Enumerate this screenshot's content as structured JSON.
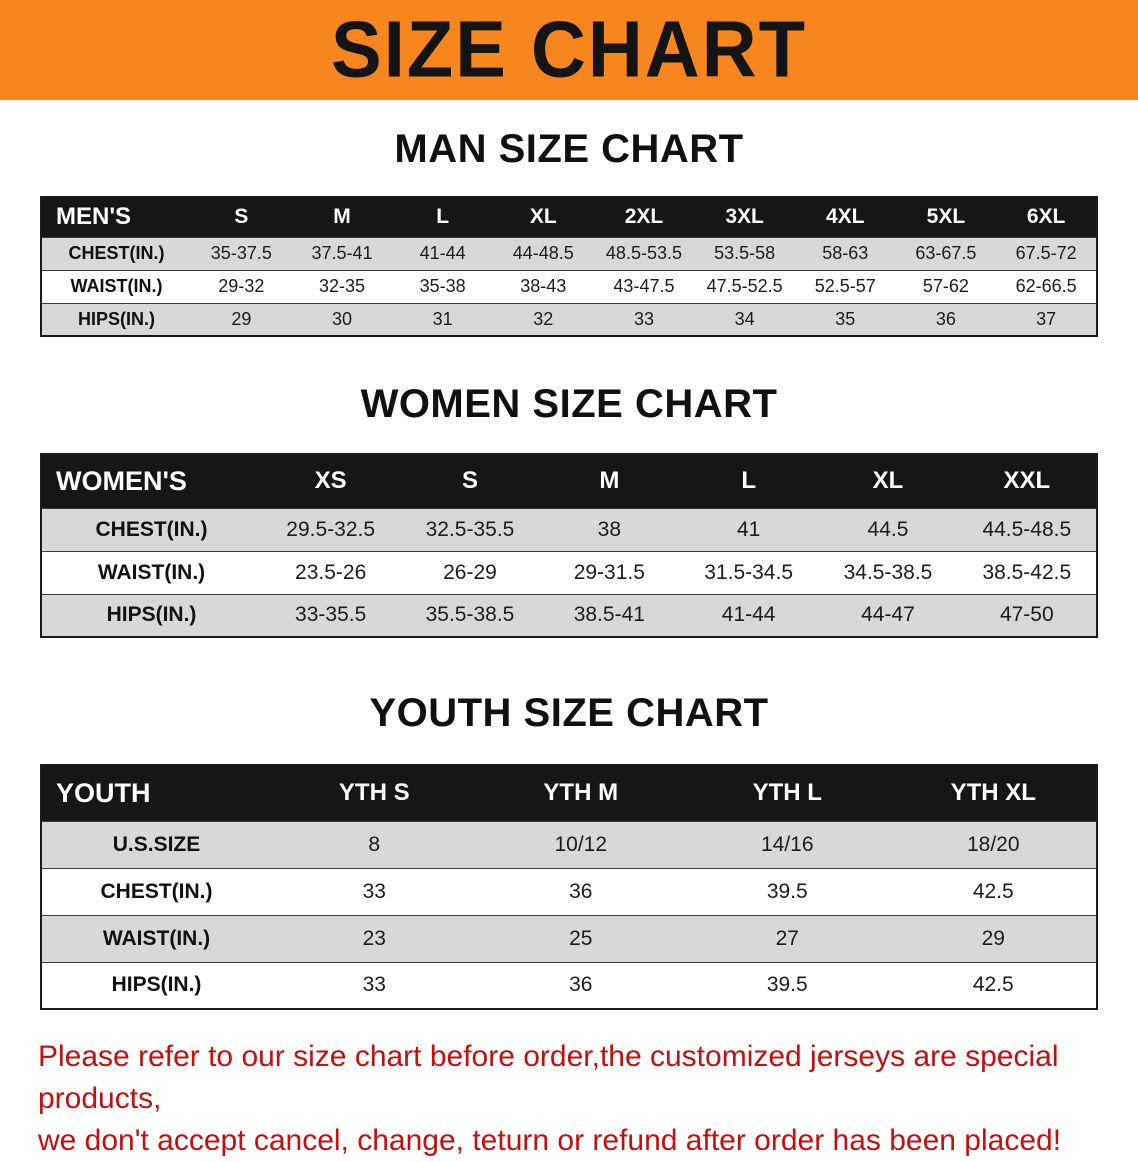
{
  "banner": {
    "title": "SIZE CHART"
  },
  "colors": {
    "banner_bg": "#f6861d",
    "table_header_bg": "#161616",
    "row_alt_bg": "#d8d8d8",
    "note_color": "#c40f0f"
  },
  "sections": [
    {
      "id": "men",
      "heading": "MAN SIZE CHART",
      "table": {
        "header": [
          "MEN'S",
          "S",
          "M",
          "L",
          "XL",
          "2XL",
          "3XL",
          "4XL",
          "5XL",
          "6XL"
        ],
        "rows": [
          [
            "CHEST(IN.)",
            "35-37.5",
            "37.5-41",
            "41-44",
            "44-48.5",
            "48.5-53.5",
            "53.5-58",
            "58-63",
            "63-67.5",
            "67.5-72"
          ],
          [
            "WAIST(IN.)",
            "29-32",
            "32-35",
            "35-38",
            "38-43",
            "43-47.5",
            "47.5-52.5",
            "52.5-57",
            "57-62",
            "62-66.5"
          ],
          [
            "HIPS(IN.)",
            "29",
            "30",
            "31",
            "32",
            "33",
            "34",
            "35",
            "36",
            "37"
          ]
        ]
      }
    },
    {
      "id": "women",
      "heading": "WOMEN SIZE CHART",
      "table": {
        "header": [
          "WOMEN'S",
          "XS",
          "S",
          "M",
          "L",
          "XL",
          "XXL"
        ],
        "rows": [
          [
            "CHEST(IN.)",
            "29.5-32.5",
            "32.5-35.5",
            "38",
            "41",
            "44.5",
            "44.5-48.5"
          ],
          [
            "WAIST(IN.)",
            "23.5-26",
            "26-29",
            "29-31.5",
            "31.5-34.5",
            "34.5-38.5",
            "38.5-42.5"
          ],
          [
            "HIPS(IN.)",
            "33-35.5",
            "35.5-38.5",
            "38.5-41",
            "41-44",
            "44-47",
            "47-50"
          ]
        ]
      }
    },
    {
      "id": "youth",
      "heading": "YOUTH SIZE CHART",
      "table": {
        "header": [
          "YOUTH",
          "YTH S",
          "YTH M",
          "YTH L",
          "YTH XL"
        ],
        "rows": [
          [
            "U.S.SIZE",
            "8",
            "10/12",
            "14/16",
            "18/20"
          ],
          [
            "CHEST(IN.)",
            "33",
            "36",
            "39.5",
            "42.5"
          ],
          [
            "WAIST(IN.)",
            "23",
            "25",
            "27",
            "29"
          ],
          [
            "HIPS(IN.)",
            "33",
            "36",
            "39.5",
            "42.5"
          ]
        ]
      }
    }
  ],
  "footer_note": {
    "line1": "Please refer to our size chart before order,the customized jerseys are special products,",
    "line2": "we don't accept cancel, change, teturn or refund after order has been placed!"
  }
}
